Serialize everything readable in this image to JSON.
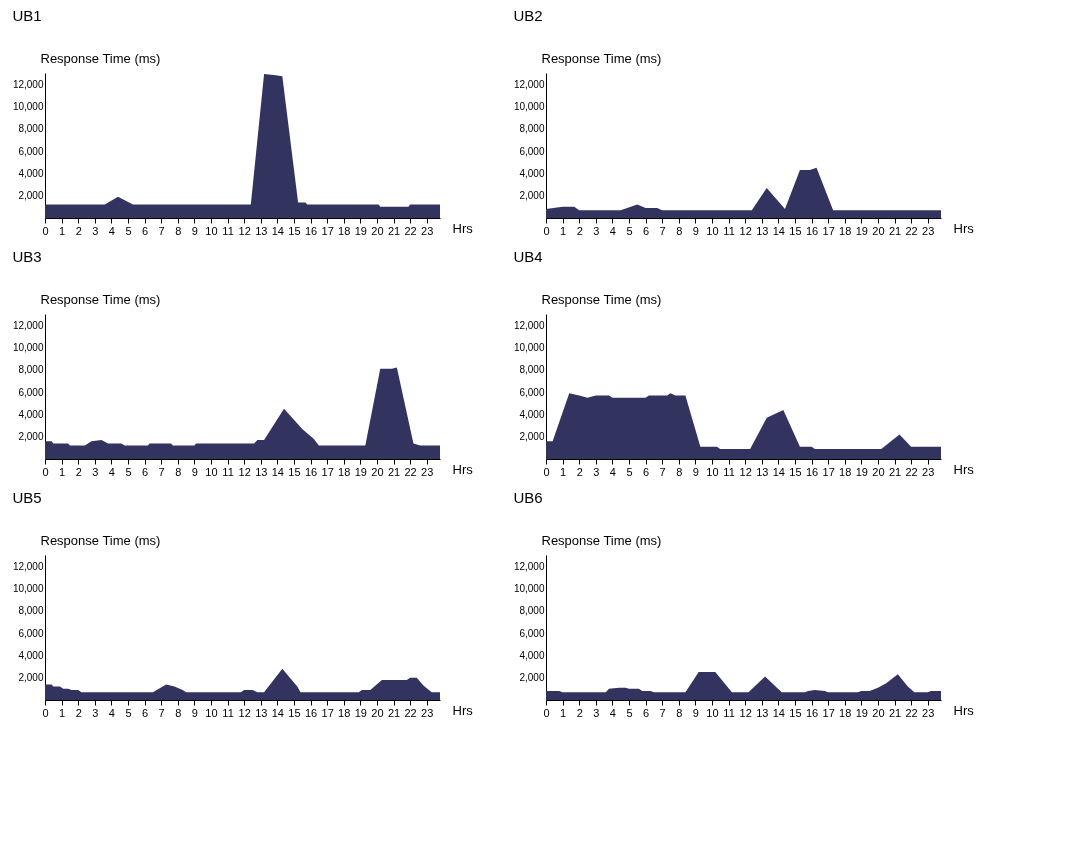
{
  "chart_data": [
    {
      "type": "area",
      "title": "UB1",
      "xlabel": "Hrs",
      "ylabel": "Response Time (ms)",
      "color": "#33335f",
      "xlim": [
        0,
        23.8
      ],
      "ylim": [
        0,
        13000
      ],
      "xticks": [
        0,
        1,
        2,
        3,
        4,
        5,
        6,
        7,
        8,
        9,
        10,
        11,
        12,
        13,
        14,
        15,
        16,
        17,
        18,
        19,
        20,
        21,
        22,
        23
      ],
      "yticks": [
        {
          "value": 2000,
          "label": "2,000"
        },
        {
          "value": 4000,
          "label": "4,000"
        },
        {
          "value": 6000,
          "label": "6,000"
        },
        {
          "value": 8000,
          "label": "8,000"
        },
        {
          "value": 10000,
          "label": "10,000"
        },
        {
          "value": 12000,
          "label": "12,000"
        }
      ],
      "x": [
        0,
        3.6,
        4.4,
        5.3,
        12.4,
        13.2,
        13.9,
        14.3,
        15.25,
        15.7,
        15.8,
        20.1,
        20.2,
        21.9,
        22,
        23.8
      ],
      "values": [
        1200,
        1200,
        1900,
        1200,
        1200,
        12900,
        12800,
        12700,
        1400,
        1400,
        1200,
        1200,
        1000,
        1000,
        1200,
        1200
      ]
    },
    {
      "type": "area",
      "title": "UB2",
      "xlabel": "Hrs",
      "ylabel": "Response Time (ms)",
      "color": "#33335f",
      "xlim": [
        0,
        23.8
      ],
      "ylim": [
        0,
        13000
      ],
      "xticks": [
        0,
        1,
        2,
        3,
        4,
        5,
        6,
        7,
        8,
        9,
        10,
        11,
        12,
        13,
        14,
        15,
        16,
        17,
        18,
        19,
        20,
        21,
        22,
        23
      ],
      "yticks": [
        {
          "value": 2000,
          "label": "2,000"
        },
        {
          "value": 4000,
          "label": "4,000"
        },
        {
          "value": 6000,
          "label": "6,000"
        },
        {
          "value": 8000,
          "label": "8,000"
        },
        {
          "value": 10000,
          "label": "10,000"
        },
        {
          "value": 12000,
          "label": "12,000"
        }
      ],
      "x": [
        0,
        1.0,
        1.7,
        2.0,
        4.5,
        5.5,
        6.0,
        6.7,
        7.0,
        12.4,
        13.3,
        14.4,
        15.3,
        15.9,
        16.3,
        17.3,
        23.8
      ],
      "values": [
        800,
        1000,
        1000,
        700,
        700,
        1200,
        900,
        900,
        700,
        700,
        2700,
        800,
        4300,
        4300,
        4500,
        700,
        700
      ]
    },
    {
      "type": "area",
      "title": "UB3",
      "xlabel": "Hrs",
      "ylabel": "Response Time (ms)",
      "color": "#33335f",
      "xlim": [
        0,
        23.8
      ],
      "ylim": [
        0,
        13000
      ],
      "xticks": [
        0,
        1,
        2,
        3,
        4,
        5,
        6,
        7,
        8,
        9,
        10,
        11,
        12,
        13,
        14,
        15,
        16,
        17,
        18,
        19,
        20,
        21,
        22,
        23
      ],
      "yticks": [
        {
          "value": 2000,
          "label": "2,000"
        },
        {
          "value": 4000,
          "label": "4,000"
        },
        {
          "value": 6000,
          "label": "6,000"
        },
        {
          "value": 8000,
          "label": "8,000"
        },
        {
          "value": 10000,
          "label": "10,000"
        },
        {
          "value": 12000,
          "label": "12,000"
        }
      ],
      "x": [
        0,
        0.4,
        0.5,
        1.4,
        1.5,
        2.4,
        2.8,
        3.4,
        3.8,
        4.6,
        4.8,
        6.2,
        6.3,
        7.6,
        7.7,
        9.0,
        9.1,
        12.6,
        12.8,
        13.2,
        14.4,
        15.5,
        16.2,
        16.5,
        19.3,
        20.2,
        20.9,
        21.2,
        22.2,
        22.6,
        23.8
      ],
      "values": [
        1600,
        1600,
        1400,
        1400,
        1200,
        1200,
        1600,
        1700,
        1400,
        1400,
        1200,
        1200,
        1400,
        1400,
        1200,
        1200,
        1400,
        1400,
        1700,
        1700,
        4500,
        2700,
        1800,
        1200,
        1200,
        8100,
        8100,
        8200,
        1400,
        1200,
        1200
      ]
    },
    {
      "type": "area",
      "title": "UB4",
      "xlabel": "Hrs",
      "ylabel": "Response Time (ms)",
      "color": "#33335f",
      "xlim": [
        0,
        23.8
      ],
      "ylim": [
        0,
        13000
      ],
      "xticks": [
        0,
        1,
        2,
        3,
        4,
        5,
        6,
        7,
        8,
        9,
        10,
        11,
        12,
        13,
        14,
        15,
        16,
        17,
        18,
        19,
        20,
        21,
        22,
        23
      ],
      "yticks": [
        {
          "value": 2000,
          "label": "2,000"
        },
        {
          "value": 4000,
          "label": "4,000"
        },
        {
          "value": 6000,
          "label": "6,000"
        },
        {
          "value": 8000,
          "label": "8,000"
        },
        {
          "value": 10000,
          "label": "10,000"
        },
        {
          "value": 12000,
          "label": "12,000"
        }
      ],
      "x": [
        0,
        0.4,
        1.4,
        2.0,
        2.5,
        3.0,
        3.8,
        4.0,
        6.0,
        6.2,
        7.3,
        7.5,
        7.8,
        8.4,
        9.3,
        10.3,
        10.5,
        12.3,
        13.3,
        14.3,
        15.3,
        16.0,
        16.2,
        20.2,
        21.3,
        22.0,
        23.8
      ],
      "values": [
        1600,
        1600,
        5900,
        5700,
        5500,
        5700,
        5700,
        5500,
        5500,
        5700,
        5700,
        5900,
        5700,
        5700,
        1100,
        1100,
        900,
        900,
        3700,
        4400,
        1100,
        1100,
        900,
        900,
        2200,
        1100,
        1100
      ]
    },
    {
      "type": "area",
      "title": "UB5",
      "xlabel": "Hrs",
      "ylabel": "Response Time (ms)",
      "color": "#33335f",
      "xlim": [
        0,
        23.8
      ],
      "ylim": [
        0,
        13000
      ],
      "xticks": [
        0,
        1,
        2,
        3,
        4,
        5,
        6,
        7,
        8,
        9,
        10,
        11,
        12,
        13,
        14,
        15,
        16,
        17,
        18,
        19,
        20,
        21,
        22,
        23
      ],
      "yticks": [
        {
          "value": 2000,
          "label": "2,000"
        },
        {
          "value": 4000,
          "label": "4,000"
        },
        {
          "value": 6000,
          "label": "6,000"
        },
        {
          "value": 8000,
          "label": "8,000"
        },
        {
          "value": 10000,
          "label": "10,000"
        },
        {
          "value": 12000,
          "label": "12,000"
        }
      ],
      "x": [
        0,
        0.4,
        0.5,
        0.9,
        1.1,
        1.4,
        1.6,
        2.0,
        2.2,
        6.5,
        7.3,
        7.8,
        8.3,
        8.5,
        11.8,
        12.0,
        12.5,
        12.8,
        13.2,
        14.3,
        15.2,
        15.4,
        18.9,
        19.1,
        19.6,
        20.3,
        21.8,
        22.0,
        22.4,
        22.8,
        23.3,
        23.8
      ],
      "values": [
        1400,
        1400,
        1200,
        1200,
        1000,
        1000,
        900,
        900,
        700,
        700,
        1400,
        1200,
        900,
        700,
        700,
        900,
        900,
        700,
        700,
        2800,
        1200,
        700,
        700,
        900,
        900,
        1800,
        1800,
        2000,
        2000,
        1300,
        700,
        700
      ]
    },
    {
      "type": "area",
      "title": "UB6",
      "xlabel": "Hrs",
      "ylabel": "Response Time (ms)",
      "color": "#33335f",
      "xlim": [
        0,
        23.8
      ],
      "ylim": [
        0,
        13000
      ],
      "xticks": [
        0,
        1,
        2,
        3,
        4,
        5,
        6,
        7,
        8,
        9,
        10,
        11,
        12,
        13,
        14,
        15,
        16,
        17,
        18,
        19,
        20,
        21,
        22,
        23
      ],
      "yticks": [
        {
          "value": 2000,
          "label": "2,000"
        },
        {
          "value": 4000,
          "label": "4,000"
        },
        {
          "value": 6000,
          "label": "6,000"
        },
        {
          "value": 8000,
          "label": "8,000"
        },
        {
          "value": 10000,
          "label": "10,000"
        },
        {
          "value": 12000,
          "label": "12,000"
        }
      ],
      "x": [
        0,
        0.8,
        1.0,
        3.6,
        3.8,
        4.4,
        4.8,
        5.0,
        5.6,
        5.8,
        6.3,
        6.5,
        8.4,
        9.2,
        10.2,
        11.2,
        12.2,
        13.2,
        14.2,
        15.6,
        15.8,
        16.2,
        16.8,
        17.0,
        18.8,
        19.0,
        19.5,
        20.0,
        20.5,
        21.2,
        21.8,
        22.2,
        23.0,
        23.2,
        23.8
      ],
      "values": [
        800,
        800,
        700,
        700,
        1000,
        1100,
        1100,
        1000,
        1000,
        800,
        800,
        700,
        700,
        2500,
        2500,
        700,
        700,
        2100,
        700,
        700,
        800,
        900,
        800,
        700,
        700,
        800,
        800,
        1100,
        1500,
        2300,
        1200,
        700,
        700,
        800,
        800
      ]
    }
  ]
}
